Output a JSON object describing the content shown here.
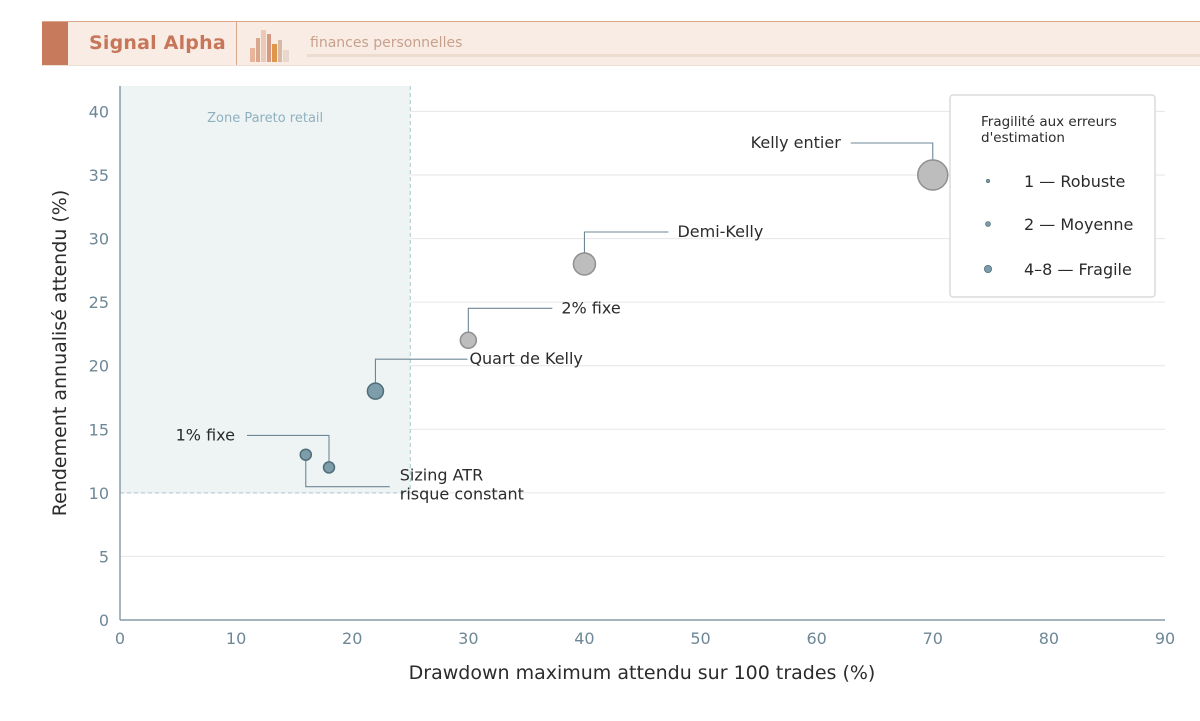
{
  "header": {
    "brand": "Signal Alpha",
    "subtitle": "finances personnelles"
  },
  "colors": {
    "accent": "#c87a5c",
    "brand_text": "#c8765a",
    "point_fragile": "#7e9daa",
    "point_robust_stroke": "#4f6e7a",
    "point_gray": "#bdbdbd",
    "point_gray_stroke": "#8f8f8f",
    "zone_fill": "#eef3f4",
    "zone_stroke": "#a8c8d2",
    "grid": "#e6e6e6"
  },
  "chart_data": {
    "type": "scatter",
    "title": "",
    "xlabel": "Drawdown maximum attendu sur 100 trades (%)",
    "ylabel": "Rendement annualisé attendu (%)",
    "xlim": [
      0,
      90
    ],
    "ylim": [
      0,
      42
    ],
    "xticks": [
      0,
      10,
      20,
      30,
      40,
      50,
      60,
      70,
      80,
      90
    ],
    "yticks": [
      0,
      5,
      10,
      15,
      20,
      25,
      30,
      35,
      40
    ],
    "grid": "horizontal",
    "zone": {
      "label": "Zone Pareto retail",
      "x_max": 25,
      "y_min": 10
    },
    "points": [
      {
        "label": "1% fixe",
        "x": 16,
        "y": 13,
        "fragility": 1,
        "color": "blue"
      },
      {
        "label": "Sizing ATR\nrisque constant",
        "x": 18,
        "y": 12,
        "fragility": 1,
        "color": "blue"
      },
      {
        "label": "Quart de Kelly",
        "x": 22,
        "y": 18,
        "fragility": 2,
        "color": "blue"
      },
      {
        "label": "2% fixe",
        "x": 30,
        "y": 22,
        "fragility": 2,
        "color": "gray"
      },
      {
        "label": "Demi-Kelly",
        "x": 40,
        "y": 28,
        "fragility": 4,
        "color": "gray"
      },
      {
        "label": "Kelly entier",
        "x": 70,
        "y": 35,
        "fragility": 8,
        "color": "gray"
      }
    ],
    "legend": {
      "title": "Fragilité aux erreurs\nd'estimation",
      "position": "top-right",
      "entries": [
        {
          "label": "1 — Robuste",
          "fragility": 1
        },
        {
          "label": "2 — Moyenne",
          "fragility": 2
        },
        {
          "label": "4–8 — Fragile",
          "fragility": 4
        }
      ]
    }
  }
}
